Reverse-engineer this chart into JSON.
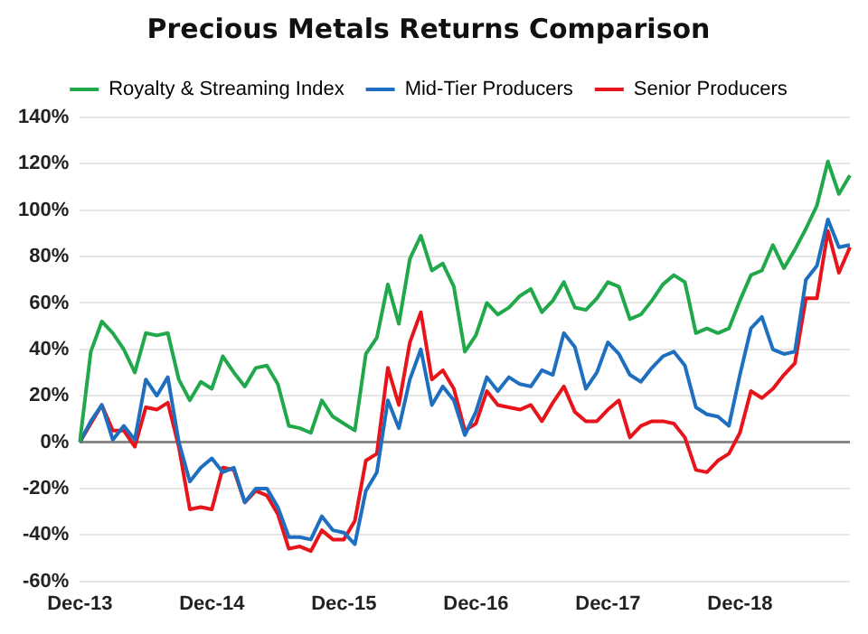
{
  "chart_data": {
    "type": "line",
    "title": "Precious Metals Returns Comparison",
    "categories": [
      "Dec-13",
      null,
      null,
      null,
      null,
      null,
      null,
      null,
      null,
      null,
      null,
      null,
      "Dec-14",
      null,
      null,
      null,
      null,
      null,
      null,
      null,
      null,
      null,
      null,
      null,
      "Dec-15",
      null,
      null,
      null,
      null,
      null,
      null,
      null,
      null,
      null,
      null,
      null,
      "Dec-16",
      null,
      null,
      null,
      null,
      null,
      null,
      null,
      null,
      null,
      null,
      null,
      "Dec-17",
      null,
      null,
      null,
      null,
      null,
      null,
      null,
      null,
      null,
      null,
      null,
      "Dec-18",
      null,
      null,
      null,
      null,
      null,
      null,
      null,
      null,
      null,
      null
    ],
    "series": [
      {
        "name": "Royalty & Streaming Index",
        "color": "#20a84a",
        "values": [
          0,
          39,
          52,
          47,
          40,
          30,
          47,
          46,
          47,
          27,
          18,
          26,
          23,
          37,
          30,
          24,
          32,
          33,
          25,
          7,
          6,
          4,
          18,
          11,
          8,
          5,
          38,
          45,
          68,
          51,
          79,
          89,
          74,
          77,
          67,
          39,
          46,
          60,
          55,
          58,
          63,
          66,
          56,
          61,
          69,
          58,
          57,
          62,
          69,
          67,
          53,
          55,
          61,
          68,
          72,
          69,
          47,
          49,
          47,
          49,
          61,
          72,
          74,
          85,
          75,
          83,
          92,
          102,
          121,
          107,
          115
        ]
      },
      {
        "name": "Mid-Tier Producers",
        "color": "#1f6fc0",
        "values": [
          0,
          9,
          16,
          1,
          7,
          1,
          27,
          20,
          28,
          0,
          -17,
          -11,
          -7,
          -13,
          -11,
          -26,
          -20,
          -20,
          -28,
          -41,
          -41,
          -42,
          -32,
          -38,
          -39,
          -44,
          -21,
          -13,
          18,
          6,
          27,
          40,
          16,
          24,
          18,
          3,
          13,
          28,
          22,
          28,
          25,
          24,
          31,
          29,
          47,
          41,
          23,
          30,
          43,
          38,
          29,
          26,
          32,
          37,
          39,
          33,
          15,
          12,
          11,
          7,
          29,
          49,
          54,
          40,
          38,
          39,
          70,
          76,
          96,
          84,
          85
        ]
      },
      {
        "name": "Senior Producers",
        "color": "#e8141c",
        "values": [
          0,
          8,
          16,
          5,
          5,
          -2,
          15,
          14,
          17,
          -2,
          -29,
          -28,
          -29,
          -11,
          -12,
          -26,
          -21,
          -23,
          -31,
          -46,
          -45,
          -47,
          -38,
          -42,
          -42,
          -34,
          -8,
          -5,
          32,
          16,
          43,
          56,
          27,
          31,
          23,
          5,
          8,
          22,
          16,
          15,
          14,
          16,
          9,
          17,
          24,
          13,
          9,
          9,
          14,
          18,
          2,
          7,
          9,
          9,
          8,
          2,
          -12,
          -13,
          -8,
          -5,
          4,
          22,
          19,
          23,
          29,
          34,
          62,
          62,
          91,
          73,
          84
        ]
      }
    ],
    "ylim": [
      -60,
      140
    ],
    "yticks": [
      {
        "value": -60,
        "label": "-60%"
      },
      {
        "value": -40,
        "label": "-40%"
      },
      {
        "value": -20,
        "label": "-20%"
      },
      {
        "value": 0,
        "label": "0%"
      },
      {
        "value": 20,
        "label": "20%"
      },
      {
        "value": 40,
        "label": "40%"
      },
      {
        "value": 60,
        "label": "60%"
      },
      {
        "value": 80,
        "label": "80%"
      },
      {
        "value": 100,
        "label": "100%"
      },
      {
        "value": 120,
        "label": "120%"
      },
      {
        "value": 140,
        "label": "140%"
      }
    ],
    "grid": "y",
    "legend": "top",
    "marker": "none",
    "line_style": "solid"
  }
}
